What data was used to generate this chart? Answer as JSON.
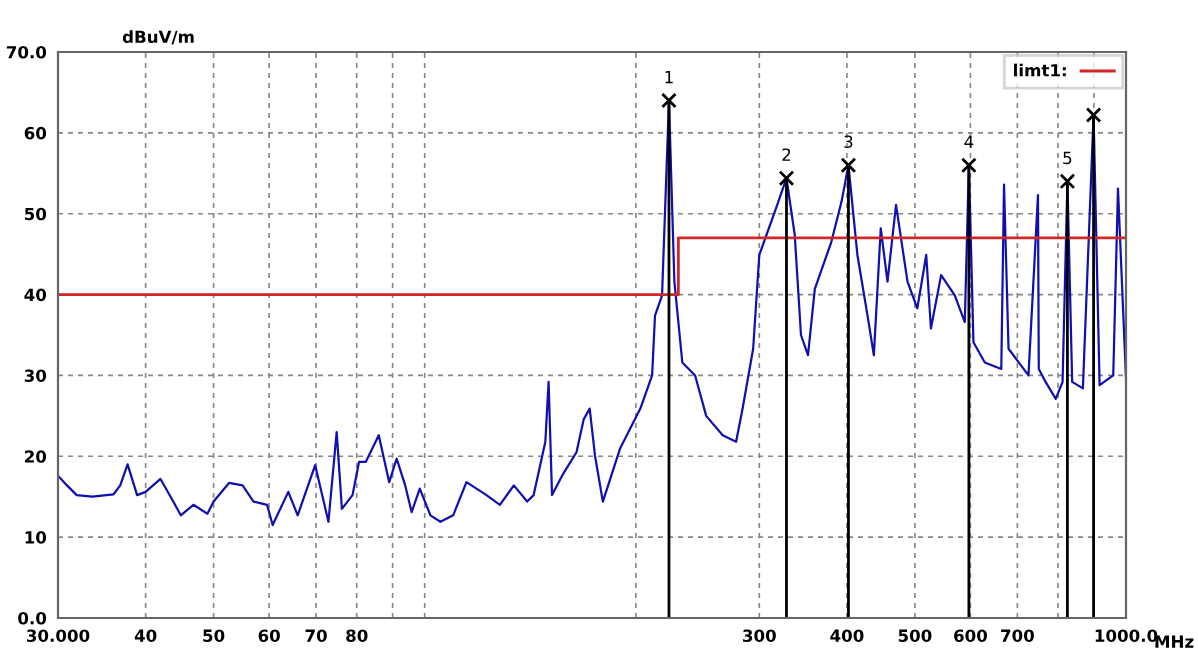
{
  "chart_data": {
    "type": "line",
    "xlabel": "MHz",
    "ylabel": "dBuV/m",
    "log": "x",
    "grid": true,
    "legend": "top right",
    "line_style": "solid",
    "xlim": [
      30,
      1000
    ],
    "ylim": [
      0,
      70
    ],
    "xticks": [
      {
        "value": 30,
        "label": "30.000"
      },
      40,
      50,
      60,
      70,
      80,
      {
        "value": 90,
        "label": null
      },
      {
        "value": 100,
        "label": null
      },
      {
        "value": 200,
        "label": null
      },
      300,
      400,
      500,
      600,
      700,
      {
        "value": 800,
        "label": null
      },
      {
        "value": 900,
        "label": null
      },
      {
        "value": 1000,
        "label": "1000.0"
      }
    ],
    "yticks": [
      {
        "value": 0,
        "label": "0.0"
      },
      10,
      20,
      30,
      40,
      50,
      60,
      {
        "value": 70,
        "label": "70.0"
      }
    ],
    "series": [
      {
        "color": "#1010b0",
        "x": [
          30,
          30.9,
          31.9,
          33.6,
          36.0,
          36.8,
          37.7,
          38.9,
          40.0,
          42,
          43.8,
          44.9,
          46.8,
          49.0,
          50,
          52.6,
          55,
          57,
          59.6,
          60.7,
          63.9,
          65.9,
          69.8,
          72.9,
          74.9,
          76.2,
          78.9,
          80.6,
          82.4,
          86,
          89,
          91.2,
          93.8,
          95.8,
          98.4,
          101.9,
          105.3,
          109.8,
          114.7,
          122.5,
          128,
          134,
          140,
          143,
          148.6,
          150.2,
          151.9,
          157,
          164.6,
          168.6,
          171.9,
          174.9,
          179.5,
          190,
          203,
          211,
          213,
          218,
          223,
          227,
          233,
          243,
          252,
          266,
          278,
          284,
          294,
          300,
          317,
          328,
          337,
          344,
          352,
          360,
          380,
          393,
          402,
          414,
          428,
          437,
          447,
          457,
          470,
          488,
          504,
          519,
          527,
          545,
          570,
          589,
          597,
          606,
          629,
          664,
          670,
          680,
          726,
          749,
          751,
          768,
          794,
          812,
          825,
          838,
          868,
          899,
          917,
          959,
          974,
          1000
        ],
        "values": [
          17.6,
          16.4,
          15.2,
          15.0,
          15.3,
          16.4,
          19.0,
          15.2,
          15.6,
          17.2,
          14.4,
          12.7,
          14.0,
          12.9,
          14.4,
          16.7,
          16.4,
          14.4,
          14.0,
          11.5,
          15.6,
          12.7,
          18.9,
          11.9,
          23.0,
          13.5,
          15.2,
          19.3,
          19.3,
          22.6,
          16.8,
          19.7,
          16.4,
          13.1,
          16.0,
          12.7,
          11.9,
          12.7,
          16.8,
          15.2,
          14.0,
          16.4,
          14.4,
          15.2,
          21.8,
          29.2,
          15.2,
          17.6,
          20.5,
          24.6,
          25.9,
          20.1,
          14.4,
          21,
          25.9,
          30,
          37.4,
          39.9,
          64,
          41.6,
          31.6,
          30,
          25,
          22.6,
          21.8,
          25.9,
          33.3,
          44.9,
          50.7,
          54.4,
          47.4,
          35,
          32.5,
          40.7,
          46.5,
          51.5,
          56,
          44.9,
          37.4,
          32.5,
          48.2,
          41.6,
          51.1,
          41.6,
          38.3,
          44.9,
          35.8,
          42.4,
          39.9,
          36.6,
          56,
          34.1,
          31.6,
          30.8,
          53.6,
          33.3,
          30,
          52.3,
          30.8,
          29.2,
          27.1,
          29.2,
          54,
          29.2,
          28.4,
          62.2,
          28.8,
          30,
          53.1,
          29.6
        ]
      },
      {
        "type": "step",
        "name": "limt1:",
        "color": "#d02828",
        "x": [
          30,
          230,
          1000
        ],
        "values": [
          40,
          47,
          47
        ]
      },
      {
        "type": "lollipop",
        "color": "#000000",
        "marker": "cross",
        "x": [
          223,
          328,
          402,
          597,
          825,
          899
        ],
        "values": [
          64,
          54.4,
          56,
          56,
          54,
          62.2
        ]
      }
    ],
    "annotations": [
      {
        "text": "1",
        "x": 223,
        "y": 64
      },
      {
        "text": "2",
        "x": 328,
        "y": 54.4
      },
      {
        "text": "3",
        "x": 402,
        "y": 56
      },
      {
        "text": "4",
        "x": 597,
        "y": 56
      },
      {
        "text": "5",
        "x": 825,
        "y": 54
      }
    ]
  }
}
